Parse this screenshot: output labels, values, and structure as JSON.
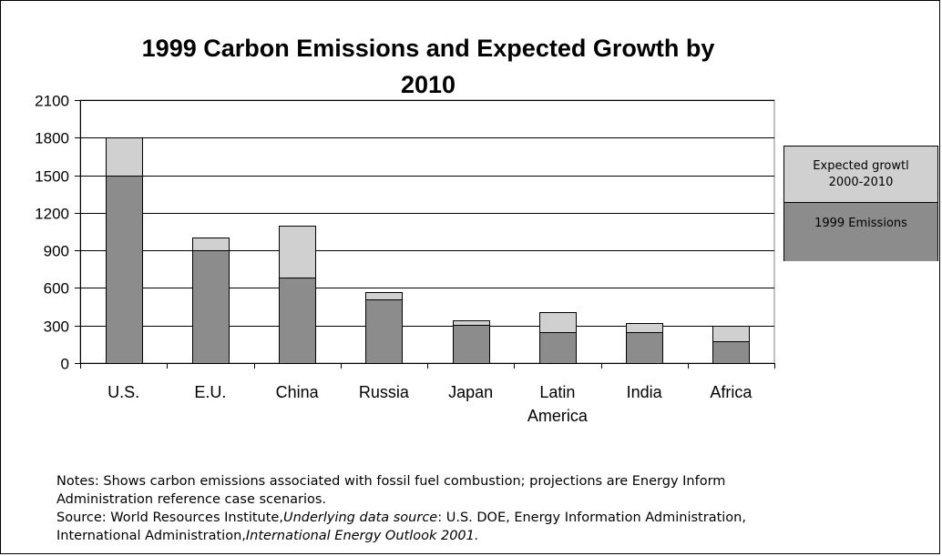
{
  "chart_data": {
    "type": "bar",
    "stacked": true,
    "title_line1": "1999 Carbon Emissions and Expected Growth by",
    "title_line2": "2010",
    "categories": [
      "U.S.",
      "E.U.",
      "China",
      "Russia",
      "Japan",
      "Latin",
      "India",
      "Africa"
    ],
    "category_second_line": [
      "",
      "",
      "",
      "",
      "",
      "America",
      "",
      ""
    ],
    "series": [
      {
        "name": "1999 Emissions",
        "values": [
          1500,
          900,
          680,
          510,
          305,
          245,
          245,
          175
        ],
        "color": "#8c8c8c"
      },
      {
        "name": "Expected growth 2000-2010",
        "values": [
          300,
          100,
          420,
          55,
          40,
          160,
          75,
          125
        ],
        "color": "#d0d0d0"
      }
    ],
    "yticks": [
      "0",
      "300",
      "600",
      "900",
      "1200",
      "1500",
      "1800",
      "2100"
    ],
    "ylim": [
      0,
      2100
    ],
    "grid": true,
    "legend_position": "right"
  },
  "legend": {
    "growth_line1": "Expected growtl",
    "growth_line2": "2000-2010",
    "emissions": "1999 Emissions"
  },
  "notes": {
    "line1": "Notes: Shows carbon emissions associated with fossil fuel combustion; projections are Energy Inform",
    "line2": "Administration reference case scenarios.",
    "line3_a": "Source: World Resources Institute,",
    "line3_b": "Underlying data source",
    "line3_c": ": U.S. DOE, Energy Information Administration,",
    "line4_a": "International Administration,",
    "line4_b": "International Energy Outlook 2001."
  }
}
